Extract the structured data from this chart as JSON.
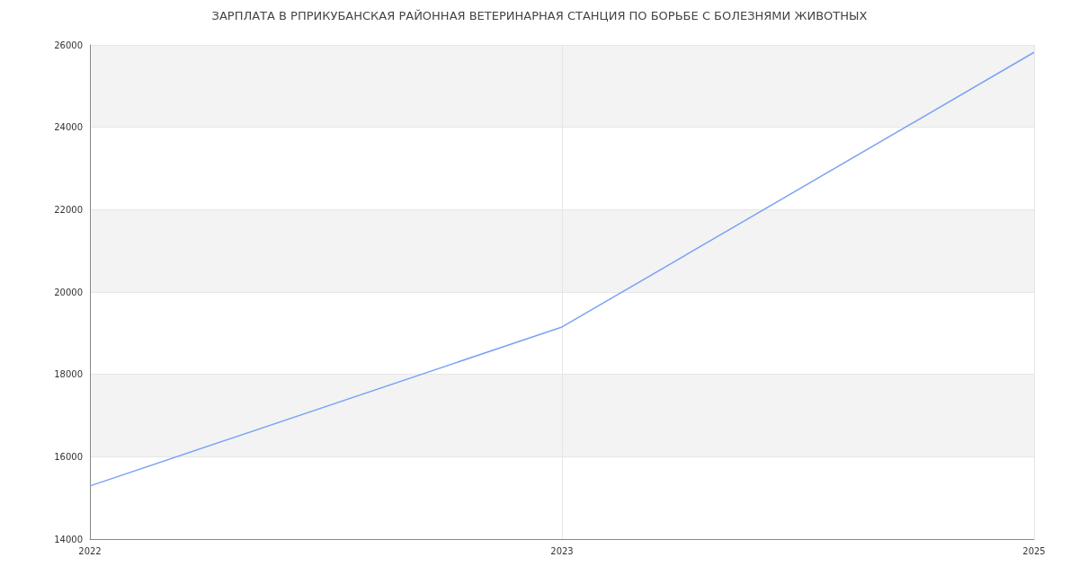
{
  "chart_data": {
    "type": "line",
    "title": "ЗАРПЛАТА В РПРИКУБАНСКАЯ РАЙОННАЯ ВЕТЕРИНАРНАЯ СТАНЦИЯ ПО БОРЬБЕ С БОЛЕЗНЯМИ ЖИВОТНЫХ",
    "categories": [
      "2022",
      "2023",
      "2025"
    ],
    "series": [
      {
        "color": "#7aa3f5",
        "values": [
          15290,
          19150,
          25820
        ]
      }
    ],
    "ylim": [
      14000,
      26000
    ],
    "yticks": [
      14000,
      16000,
      18000,
      20000,
      22000,
      24000,
      26000
    ],
    "grid": true,
    "marker": "none",
    "line_style": "solid"
  }
}
